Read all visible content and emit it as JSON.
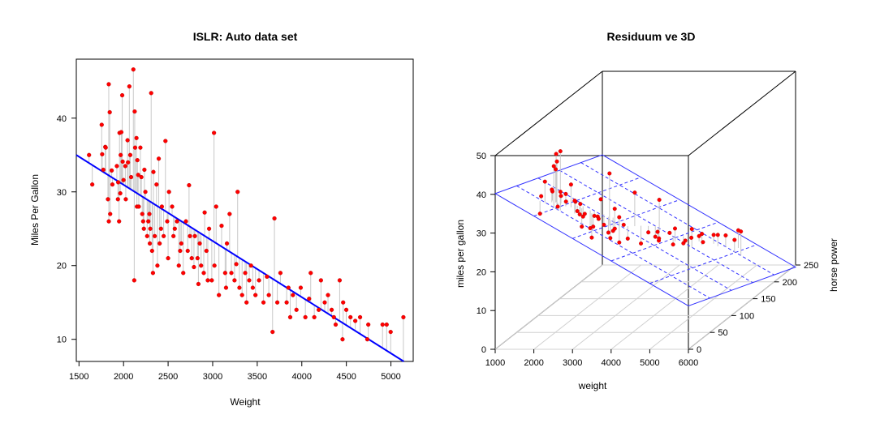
{
  "chart_data": [
    {
      "type": "scatter",
      "title": "ISLR: Auto data set",
      "xlabel": "Weight",
      "ylabel": "Miles Per Gallon",
      "xlim": [
        1470,
        5250
      ],
      "ylim": [
        7,
        48
      ],
      "x_ticks": [
        1500,
        2000,
        2500,
        3000,
        3500,
        4000,
        4500,
        5000
      ],
      "y_ticks": [
        10,
        20,
        30,
        40
      ],
      "grid": false,
      "point_color": "#ff0000",
      "residual_color": "#c8c8c8",
      "fit_line": {
        "color": "#0000ff",
        "intercept": 46.2,
        "slope": -0.00762
      },
      "series": [
        {
          "points": [
            [
              1613,
              35.0
            ],
            [
              1649,
              31.0
            ],
            [
              1755,
              39.1
            ],
            [
              1760,
              35.1
            ],
            [
              1773,
              33.0
            ],
            [
              1795,
              36.1
            ],
            [
              1800,
              36.0
            ],
            [
              1825,
              29.0
            ],
            [
              1834,
              44.6
            ],
            [
              1835,
              26.0
            ],
            [
              1845,
              40.8
            ],
            [
              1850,
              27.0
            ],
            [
              1867,
              32.9
            ],
            [
              1875,
              31.0
            ],
            [
              1925,
              33.5
            ],
            [
              1937,
              29.0
            ],
            [
              1940,
              31.3
            ],
            [
              1950,
              26.0
            ],
            [
              1955,
              38.0
            ],
            [
              1963,
              29.8
            ],
            [
              1968,
              35.0
            ],
            [
              1975,
              38.1
            ],
            [
              1985,
              43.1
            ],
            [
              1990,
              34.1
            ],
            [
              2000,
              31.6
            ],
            [
              2020,
              33.5
            ],
            [
              2025,
              29.0
            ],
            [
              2045,
              37.0
            ],
            [
              2050,
              34.0
            ],
            [
              2065,
              44.3
            ],
            [
              2075,
              35.0
            ],
            [
              2085,
              32.0
            ],
            [
              2110,
              46.6
            ],
            [
              2120,
              18.0
            ],
            [
              2125,
              40.9
            ],
            [
              2130,
              36.0
            ],
            [
              2145,
              37.3
            ],
            [
              2150,
              28.0
            ],
            [
              2155,
              34.3
            ],
            [
              2164,
              32.3
            ],
            [
              2171,
              28.0
            ],
            [
              2189,
              36.0
            ],
            [
              2200,
              32.0
            ],
            [
              2210,
              27.0
            ],
            [
              2220,
              26.0
            ],
            [
              2228,
              25.0
            ],
            [
              2234,
              33.0
            ],
            [
              2245,
              30.0
            ],
            [
              2265,
              24.0
            ],
            [
              2278,
              26.0
            ],
            [
              2290,
              27.0
            ],
            [
              2295,
              23.0
            ],
            [
              2300,
              25.0
            ],
            [
              2310,
              43.4
            ],
            [
              2320,
              22.0
            ],
            [
              2330,
              19.0
            ],
            [
              2335,
              32.7
            ],
            [
              2350,
              24.0
            ],
            [
              2370,
              31.0
            ],
            [
              2380,
              20.0
            ],
            [
              2395,
              34.5
            ],
            [
              2405,
              23.0
            ],
            [
              2420,
              25.0
            ],
            [
              2430,
              28.0
            ],
            [
              2450,
              24.0
            ],
            [
              2470,
              36.9
            ],
            [
              2490,
              26.0
            ],
            [
              2500,
              21.0
            ],
            [
              2510,
              30.0
            ],
            [
              2545,
              28.0
            ],
            [
              2560,
              24.0
            ],
            [
              2575,
              25.0
            ],
            [
              2600,
              26.0
            ],
            [
              2620,
              20.0
            ],
            [
              2635,
              22.0
            ],
            [
              2648,
              23.0
            ],
            [
              2670,
              19.0
            ],
            [
              2700,
              26.0
            ],
            [
              2720,
              22.0
            ],
            [
              2735,
              30.9
            ],
            [
              2745,
              24.0
            ],
            [
              2765,
              21.0
            ],
            [
              2790,
              19.8
            ],
            [
              2800,
              24.0
            ],
            [
              2830,
              21.0
            ],
            [
              2840,
              17.5
            ],
            [
              2855,
              23.0
            ],
            [
              2870,
              20.0
            ],
            [
              2900,
              19.0
            ],
            [
              2910,
              27.2
            ],
            [
              2930,
              22.0
            ],
            [
              2945,
              18.0
            ],
            [
              2960,
              25.0
            ],
            [
              2990,
              18.0
            ],
            [
              3015,
              38.0
            ],
            [
              3020,
              20.0
            ],
            [
              3039,
              28.0
            ],
            [
              3070,
              16.0
            ],
            [
              3100,
              25.4
            ],
            [
              3140,
              19.0
            ],
            [
              3150,
              17.0
            ],
            [
              3160,
              23.0
            ],
            [
              3190,
              27.0
            ],
            [
              3210,
              19.0
            ],
            [
              3245,
              18.0
            ],
            [
              3265,
              20.2
            ],
            [
              3280,
              30.0
            ],
            [
              3300,
              17.0
            ],
            [
              3330,
              16.0
            ],
            [
              3365,
              19.0
            ],
            [
              3380,
              15.0
            ],
            [
              3410,
              18.0
            ],
            [
              3430,
              20.0
            ],
            [
              3450,
              17.0
            ],
            [
              3480,
              16.0
            ],
            [
              3520,
              18.0
            ],
            [
              3570,
              15.0
            ],
            [
              3609,
              18.5
            ],
            [
              3630,
              16.0
            ],
            [
              3672,
              11.0
            ],
            [
              3693,
              26.4
            ],
            [
              3725,
              15.0
            ],
            [
              3760,
              19.0
            ],
            [
              3830,
              15.0
            ],
            [
              3850,
              17.0
            ],
            [
              3870,
              13.0
            ],
            [
              3900,
              16.0
            ],
            [
              3940,
              14.0
            ],
            [
              3988,
              17.0
            ],
            [
              4040,
              13.0
            ],
            [
              4082,
              15.5
            ],
            [
              4100,
              19.0
            ],
            [
              4140,
              13.0
            ],
            [
              4190,
              14.0
            ],
            [
              4215,
              18.0
            ],
            [
              4257,
              15.0
            ],
            [
              4294,
              16.0
            ],
            [
              4335,
              14.0
            ],
            [
              4360,
              13.0
            ],
            [
              4380,
              12.0
            ],
            [
              4425,
              18.0
            ],
            [
              4457,
              10.0
            ],
            [
              4464,
              15.0
            ],
            [
              4499,
              14.0
            ],
            [
              4546,
              13.0
            ],
            [
              4600,
              12.5
            ],
            [
              4654,
              13.0
            ],
            [
              4735,
              10.0
            ],
            [
              4746,
              12.0
            ],
            [
              4906,
              12.0
            ],
            [
              4952,
              12.0
            ],
            [
              4997,
              11.0
            ],
            [
              5140,
              13.0
            ]
          ]
        }
      ]
    },
    {
      "type": "scatter",
      "title": "Residuum ve 3D",
      "xlabel": "weight",
      "ylabel": "horse power",
      "zlabel": "miles per gallon",
      "xlim": [
        1000,
        6000
      ],
      "ylim": [
        0,
        250
      ],
      "zlim": [
        0,
        50
      ],
      "x_ticks": [
        1000,
        2000,
        3000,
        4000,
        5000,
        6000
      ],
      "y_ticks": [
        0,
        50,
        100,
        150,
        200,
        250
      ],
      "z_ticks": [
        0,
        10,
        20,
        30,
        40,
        50
      ],
      "grid": true,
      "point_color": "#ff0000",
      "residual_color": "#c8c8c8",
      "plane": {
        "color": "#3333ff",
        "intercept": 46.0,
        "coef_weight": -0.0058,
        "coef_horsepower": -0.047
      },
      "series": [
        {
          "points": [
            [
              1613,
              52,
              35.0
            ],
            [
              1649,
              46,
              31.0
            ],
            [
              1755,
              48,
              39.1
            ],
            [
              1760,
              65,
              35.1
            ],
            [
              1800,
              60,
              36.0
            ],
            [
              1834,
              67,
              44.6
            ],
            [
              1845,
              65,
              40.8
            ],
            [
              1875,
              67,
              31.0
            ],
            [
              1925,
              70,
              33.5
            ],
            [
              1968,
              65,
              35.0
            ],
            [
              1985,
              48,
              43.1
            ],
            [
              2000,
              75,
              31.6
            ],
            [
              2050,
              70,
              34.0
            ],
            [
              2065,
              48,
              44.3
            ],
            [
              2110,
              52,
              46.6
            ],
            [
              2130,
              75,
              36.0
            ],
            [
              2150,
              88,
              28.0
            ],
            [
              2190,
              90,
              27.0
            ],
            [
              2220,
              95,
              26.0
            ],
            [
              2265,
              88,
              24.0
            ],
            [
              2300,
              70,
              32.0
            ],
            [
              2335,
              65,
              32.7
            ],
            [
              2370,
              75,
              31.0
            ],
            [
              2405,
              95,
              23.0
            ],
            [
              2430,
              80,
              28.0
            ],
            [
              2490,
              97,
              26.0
            ],
            [
              2500,
              90,
              21.0
            ],
            [
              2560,
              88,
              24.0
            ],
            [
              2600,
              95,
              26.0
            ],
            [
              2648,
              105,
              23.0
            ],
            [
              2700,
              88,
              26.0
            ],
            [
              2735,
              90,
              30.9
            ],
            [
              2765,
              105,
              21.0
            ],
            [
              2830,
              110,
              21.0
            ],
            [
              2870,
              100,
              20.0
            ],
            [
              2930,
              105,
              22.0
            ],
            [
              2990,
              110,
              18.0
            ],
            [
              3015,
              85,
              38.0
            ],
            [
              3039,
              95,
              28.0
            ],
            [
              3100,
              100,
              25.4
            ],
            [
              3160,
              105,
              23.0
            ],
            [
              3210,
              110,
              19.0
            ],
            [
              3280,
              120,
              30.0
            ],
            [
              3330,
              130,
              16.0
            ],
            [
              3410,
              140,
              18.0
            ],
            [
              3480,
              150,
              16.0
            ],
            [
              3570,
              150,
              15.0
            ],
            [
              3630,
              145,
              16.0
            ],
            [
              3693,
              140,
              26.4
            ],
            [
              3760,
              130,
              19.0
            ],
            [
              3850,
              150,
              17.0
            ],
            [
              3940,
              150,
              14.0
            ],
            [
              4040,
              165,
              13.0
            ],
            [
              4100,
              140,
              19.0
            ],
            [
              4190,
              170,
              14.0
            ],
            [
              4257,
              150,
              15.0
            ],
            [
              4335,
              175,
              14.0
            ],
            [
              4425,
              150,
              18.0
            ],
            [
              4464,
              170,
              15.0
            ],
            [
              4546,
              190,
              13.0
            ],
            [
              4654,
              190,
              13.0
            ],
            [
              4746,
              200,
              12.0
            ],
            [
              4906,
              215,
              12.0
            ],
            [
              4997,
              198,
              11.0
            ],
            [
              5140,
              200,
              13.0
            ],
            [
              4380,
              180,
              12.0
            ]
          ]
        }
      ]
    }
  ]
}
